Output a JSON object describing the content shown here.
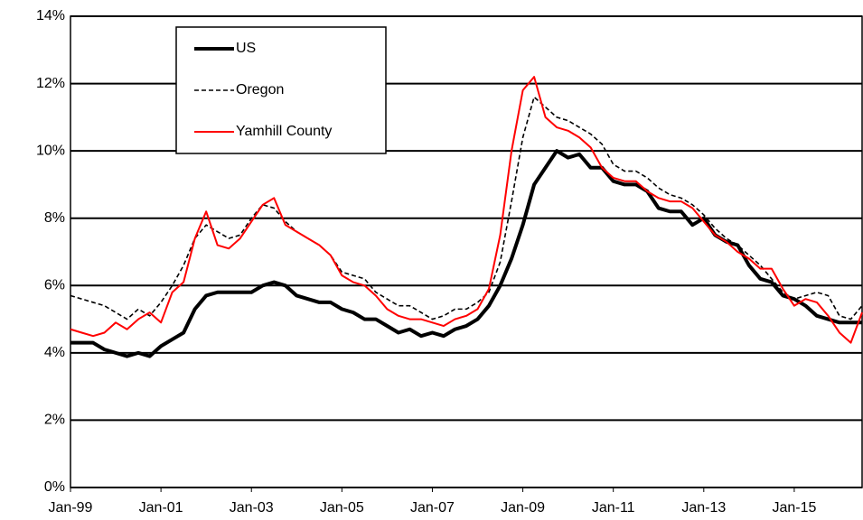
{
  "chart_data": {
    "type": "line",
    "categories": [
      "Jan-99",
      null,
      null,
      null,
      null,
      null,
      null,
      null,
      "Jan-01",
      null,
      null,
      null,
      null,
      null,
      null,
      null,
      "Jan-03",
      null,
      null,
      null,
      null,
      null,
      null,
      null,
      "Jan-05",
      null,
      null,
      null,
      null,
      null,
      null,
      null,
      "Jan-07",
      null,
      null,
      null,
      null,
      null,
      null,
      null,
      "Jan-09",
      null,
      null,
      null,
      null,
      null,
      null,
      null,
      "Jan-11",
      null,
      null,
      null,
      null,
      null,
      null,
      null,
      "Jan-13",
      null,
      null,
      null,
      null,
      null,
      null,
      null,
      "Jan-15",
      null,
      null,
      null,
      null,
      null,
      null
    ],
    "series": [
      {
        "name": "US",
        "color": "#000000",
        "line_width": 4,
        "line_style": "solid",
        "values": [
          4.3,
          4.3,
          4.3,
          4.1,
          4.0,
          3.9,
          4.0,
          3.9,
          4.2,
          4.4,
          4.6,
          5.3,
          5.7,
          5.8,
          5.8,
          5.8,
          5.8,
          6.0,
          6.1,
          6.0,
          5.7,
          5.6,
          5.5,
          5.5,
          5.3,
          5.2,
          5.0,
          5.0,
          4.8,
          4.6,
          4.7,
          4.5,
          4.6,
          4.5,
          4.7,
          4.8,
          5.0,
          5.4,
          6.0,
          6.8,
          7.8,
          9.0,
          9.5,
          10.0,
          9.8,
          9.9,
          9.5,
          9.5,
          9.1,
          9.0,
          9.0,
          8.8,
          8.3,
          8.2,
          8.2,
          7.8,
          8.0,
          7.5,
          7.3,
          7.2,
          6.6,
          6.2,
          6.1,
          5.7,
          5.6,
          5.4,
          5.1,
          5.0,
          4.9,
          4.9,
          4.9
        ]
      },
      {
        "name": "Oregon",
        "color": "#000000",
        "line_width": 1.6,
        "line_style": "dashed",
        "values": [
          5.7,
          5.6,
          5.5,
          5.4,
          5.2,
          5.0,
          5.3,
          5.1,
          5.5,
          6.0,
          6.6,
          7.4,
          7.8,
          7.6,
          7.4,
          7.5,
          8.0,
          8.4,
          8.3,
          7.9,
          7.6,
          7.4,
          7.2,
          6.9,
          6.4,
          6.3,
          6.2,
          5.8,
          5.6,
          5.4,
          5.4,
          5.2,
          5.0,
          5.1,
          5.3,
          5.3,
          5.5,
          5.8,
          6.7,
          8.5,
          10.4,
          11.6,
          11.3,
          11.0,
          10.9,
          10.7,
          10.5,
          10.2,
          9.6,
          9.4,
          9.4,
          9.2,
          8.9,
          8.7,
          8.6,
          8.4,
          8.1,
          7.7,
          7.4,
          7.2,
          6.9,
          6.6,
          6.2,
          5.8,
          5.6,
          5.7,
          5.8,
          5.7,
          5.1,
          5.0,
          5.4
        ]
      },
      {
        "name": "Yamhill County",
        "color": "#ff0000",
        "line_width": 2,
        "line_style": "solid",
        "values": [
          4.7,
          4.6,
          4.5,
          4.6,
          4.9,
          4.7,
          5.0,
          5.2,
          4.9,
          5.8,
          6.1,
          7.4,
          8.2,
          7.2,
          7.1,
          7.4,
          7.9,
          8.4,
          8.6,
          7.8,
          7.6,
          7.4,
          7.2,
          6.9,
          6.3,
          6.1,
          6.0,
          5.7,
          5.3,
          5.1,
          5.0,
          5.0,
          4.9,
          4.8,
          5.0,
          5.1,
          5.3,
          5.9,
          7.5,
          10.0,
          11.8,
          12.2,
          11.0,
          10.7,
          10.6,
          10.4,
          10.1,
          9.5,
          9.2,
          9.1,
          9.1,
          8.8,
          8.6,
          8.5,
          8.5,
          8.3,
          7.9,
          7.5,
          7.3,
          7.0,
          6.8,
          6.5,
          6.5,
          5.9,
          5.4,
          5.6,
          5.5,
          5.1,
          4.6,
          4.3,
          5.2
        ]
      }
    ],
    "ylim": [
      0,
      14
    ],
    "yticks": [
      {
        "value": 0,
        "label": "0%"
      },
      {
        "value": 2,
        "label": "2%"
      },
      {
        "value": 4,
        "label": "4%"
      },
      {
        "value": 6,
        "label": "6%"
      },
      {
        "value": 8,
        "label": "8%"
      },
      {
        "value": 10,
        "label": "10%"
      },
      {
        "value": 12,
        "label": "12%"
      },
      {
        "value": 14,
        "label": "14%"
      }
    ],
    "grid": true,
    "legend": "upper left"
  }
}
